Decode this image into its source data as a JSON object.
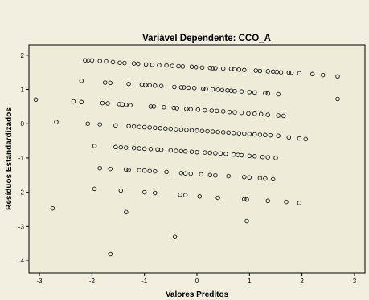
{
  "chart_data": {
    "type": "scatter",
    "title": "Variável Dependente: CCO_A",
    "xlabel": "Valores Preditos",
    "ylabel": "Resíduos Estandardizados",
    "xlim": [
      -3.2,
      3.2
    ],
    "ylim": [
      -4.35,
      2.3
    ],
    "x_ticks": [
      -3,
      -2,
      -1,
      0,
      1,
      2,
      3
    ],
    "y_ticks": [
      2,
      1,
      0,
      -1,
      -2,
      -3,
      -4
    ],
    "grid": false,
    "legend": "none",
    "background_color": "#eeecd9",
    "page_color": "#f2efe0",
    "marker": "hollow-circle",
    "series": [
      {
        "points": [
          {
            "x": -2.13,
            "y": 1.85
          },
          {
            "x": -2.07,
            "y": 1.85
          },
          {
            "x": -2.0,
            "y": 1.85
          },
          {
            "x": -1.85,
            "y": 1.83
          },
          {
            "x": -1.73,
            "y": 1.82
          },
          {
            "x": -1.6,
            "y": 1.8
          },
          {
            "x": -1.47,
            "y": 1.78
          },
          {
            "x": -1.38,
            "y": 1.77
          },
          {
            "x": -1.2,
            "y": 1.76
          },
          {
            "x": -1.12,
            "y": 1.75
          },
          {
            "x": -0.97,
            "y": 1.73
          },
          {
            "x": -0.85,
            "y": 1.72
          },
          {
            "x": -0.72,
            "y": 1.71
          },
          {
            "x": -0.58,
            "y": 1.7
          },
          {
            "x": -0.47,
            "y": 1.69
          },
          {
            "x": -0.35,
            "y": 1.68
          },
          {
            "x": -0.27,
            "y": 1.67
          },
          {
            "x": -0.1,
            "y": 1.66
          },
          {
            "x": -0.02,
            "y": 1.65
          },
          {
            "x": 0.1,
            "y": 1.64
          },
          {
            "x": 0.25,
            "y": 1.63
          },
          {
            "x": 0.3,
            "y": 1.62
          },
          {
            "x": 0.35,
            "y": 1.62
          },
          {
            "x": 0.5,
            "y": 1.61
          },
          {
            "x": 0.65,
            "y": 1.6
          },
          {
            "x": 0.72,
            "y": 1.59
          },
          {
            "x": 0.8,
            "y": 1.58
          },
          {
            "x": 0.9,
            "y": 1.57
          },
          {
            "x": 1.12,
            "y": 1.55
          },
          {
            "x": 1.2,
            "y": 1.54
          },
          {
            "x": 1.35,
            "y": 1.53
          },
          {
            "x": 1.45,
            "y": 1.52
          },
          {
            "x": 1.52,
            "y": 1.51
          },
          {
            "x": 1.6,
            "y": 1.5
          },
          {
            "x": 1.75,
            "y": 1.49
          },
          {
            "x": 1.8,
            "y": 1.49
          },
          {
            "x": 1.95,
            "y": 1.47
          },
          {
            "x": 2.2,
            "y": 1.45
          },
          {
            "x": 2.4,
            "y": 1.42
          },
          {
            "x": 2.68,
            "y": 1.38
          },
          {
            "x": -2.2,
            "y": 1.25
          },
          {
            "x": -1.75,
            "y": 1.2
          },
          {
            "x": -1.65,
            "y": 1.19
          },
          {
            "x": -1.3,
            "y": 1.16
          },
          {
            "x": -1.05,
            "y": 1.14
          },
          {
            "x": -0.98,
            "y": 1.13
          },
          {
            "x": -0.9,
            "y": 1.12
          },
          {
            "x": -0.8,
            "y": 1.11
          },
          {
            "x": -0.68,
            "y": 1.1
          },
          {
            "x": -0.43,
            "y": 1.07
          },
          {
            "x": -0.3,
            "y": 1.06
          },
          {
            "x": -0.25,
            "y": 1.06
          },
          {
            "x": -0.16,
            "y": 1.05
          },
          {
            "x": -0.05,
            "y": 1.04
          },
          {
            "x": 0.12,
            "y": 1.02
          },
          {
            "x": 0.17,
            "y": 1.01
          },
          {
            "x": 0.3,
            "y": 1.0
          },
          {
            "x": 0.4,
            "y": 0.99
          },
          {
            "x": 0.48,
            "y": 0.98
          },
          {
            "x": 0.58,
            "y": 0.97
          },
          {
            "x": 0.65,
            "y": 0.96
          },
          {
            "x": 0.72,
            "y": 0.95
          },
          {
            "x": 0.85,
            "y": 0.94
          },
          {
            "x": 1.0,
            "y": 0.92
          },
          {
            "x": 1.1,
            "y": 0.91
          },
          {
            "x": 1.3,
            "y": 0.89
          },
          {
            "x": 1.35,
            "y": 0.88
          },
          {
            "x": 1.55,
            "y": 0.86
          },
          {
            "x": -3.07,
            "y": 0.7
          },
          {
            "x": -2.35,
            "y": 0.65
          },
          {
            "x": -2.2,
            "y": 0.63
          },
          {
            "x": -1.8,
            "y": 0.6
          },
          {
            "x": -1.7,
            "y": 0.59
          },
          {
            "x": -1.48,
            "y": 0.57
          },
          {
            "x": -1.42,
            "y": 0.56
          },
          {
            "x": -1.35,
            "y": 0.55
          },
          {
            "x": -1.27,
            "y": 0.54
          },
          {
            "x": -0.88,
            "y": 0.5
          },
          {
            "x": -0.82,
            "y": 0.5
          },
          {
            "x": -0.63,
            "y": 0.48
          },
          {
            "x": -0.44,
            "y": 0.46
          },
          {
            "x": -0.38,
            "y": 0.45
          },
          {
            "x": -0.2,
            "y": 0.43
          },
          {
            "x": -0.12,
            "y": 0.42
          },
          {
            "x": 0.02,
            "y": 0.41
          },
          {
            "x": 0.15,
            "y": 0.39
          },
          {
            "x": 0.28,
            "y": 0.38
          },
          {
            "x": 0.38,
            "y": 0.37
          },
          {
            "x": 0.5,
            "y": 0.36
          },
          {
            "x": 0.62,
            "y": 0.34
          },
          {
            "x": 0.72,
            "y": 0.33
          },
          {
            "x": 0.85,
            "y": 0.32
          },
          {
            "x": 0.98,
            "y": 0.3
          },
          {
            "x": 1.1,
            "y": 0.29
          },
          {
            "x": 1.22,
            "y": 0.28
          },
          {
            "x": 1.35,
            "y": 0.26
          },
          {
            "x": 1.55,
            "y": 0.24
          },
          {
            "x": 1.65,
            "y": 0.23
          },
          {
            "x": 2.68,
            "y": 0.72
          },
          {
            "x": -2.68,
            "y": 0.05
          },
          {
            "x": -2.08,
            "y": 0.0
          },
          {
            "x": -1.85,
            "y": -0.02
          },
          {
            "x": -1.55,
            "y": -0.05
          },
          {
            "x": -1.3,
            "y": -0.07
          },
          {
            "x": -1.2,
            "y": -0.08
          },
          {
            "x": -1.1,
            "y": -0.09
          },
          {
            "x": -1.0,
            "y": -0.1
          },
          {
            "x": -0.9,
            "y": -0.11
          },
          {
            "x": -0.8,
            "y": -0.12
          },
          {
            "x": -0.7,
            "y": -0.13
          },
          {
            "x": -0.6,
            "y": -0.14
          },
          {
            "x": -0.5,
            "y": -0.15
          },
          {
            "x": -0.4,
            "y": -0.16
          },
          {
            "x": -0.3,
            "y": -0.17
          },
          {
            "x": -0.2,
            "y": -0.18
          },
          {
            "x": -0.1,
            "y": -0.19
          },
          {
            "x": 0.0,
            "y": -0.2
          },
          {
            "x": 0.1,
            "y": -0.21
          },
          {
            "x": 0.2,
            "y": -0.22
          },
          {
            "x": 0.3,
            "y": -0.23
          },
          {
            "x": 0.4,
            "y": -0.24
          },
          {
            "x": 0.5,
            "y": -0.25
          },
          {
            "x": 0.6,
            "y": -0.26
          },
          {
            "x": 0.7,
            "y": -0.27
          },
          {
            "x": 0.8,
            "y": -0.28
          },
          {
            "x": 0.9,
            "y": -0.29
          },
          {
            "x": 1.0,
            "y": -0.3
          },
          {
            "x": 1.1,
            "y": -0.31
          },
          {
            "x": 1.2,
            "y": -0.32
          },
          {
            "x": 1.3,
            "y": -0.33
          },
          {
            "x": 1.4,
            "y": -0.34
          },
          {
            "x": 1.55,
            "y": -0.35
          },
          {
            "x": 1.75,
            "y": -0.4
          },
          {
            "x": 1.95,
            "y": -0.43
          },
          {
            "x": 2.07,
            "y": -0.45
          },
          {
            "x": -1.95,
            "y": -0.65
          },
          {
            "x": -1.55,
            "y": -0.68
          },
          {
            "x": -1.45,
            "y": -0.69
          },
          {
            "x": -1.35,
            "y": -0.7
          },
          {
            "x": -1.2,
            "y": -0.71
          },
          {
            "x": -1.1,
            "y": -0.72
          },
          {
            "x": -1.0,
            "y": -0.73
          },
          {
            "x": -0.88,
            "y": -0.74
          },
          {
            "x": -0.75,
            "y": -0.75
          },
          {
            "x": -0.68,
            "y": -0.76
          },
          {
            "x": -0.5,
            "y": -0.78
          },
          {
            "x": -0.4,
            "y": -0.79
          },
          {
            "x": -0.3,
            "y": -0.8
          },
          {
            "x": -0.22,
            "y": -0.81
          },
          {
            "x": -0.1,
            "y": -0.82
          },
          {
            "x": 0.0,
            "y": -0.83
          },
          {
            "x": 0.15,
            "y": -0.84
          },
          {
            "x": 0.25,
            "y": -0.85
          },
          {
            "x": 0.35,
            "y": -0.86
          },
          {
            "x": 0.45,
            "y": -0.87
          },
          {
            "x": 0.55,
            "y": -0.88
          },
          {
            "x": 0.7,
            "y": -0.9
          },
          {
            "x": 0.78,
            "y": -0.91
          },
          {
            "x": 0.85,
            "y": -0.92
          },
          {
            "x": 1.0,
            "y": -0.94
          },
          {
            "x": 1.1,
            "y": -0.95
          },
          {
            "x": 1.25,
            "y": -0.97
          },
          {
            "x": 1.35,
            "y": -0.98
          },
          {
            "x": 1.5,
            "y": -1.0
          },
          {
            "x": -1.85,
            "y": -1.3
          },
          {
            "x": -1.65,
            "y": -1.32
          },
          {
            "x": -1.35,
            "y": -1.34
          },
          {
            "x": -1.3,
            "y": -1.35
          },
          {
            "x": -1.1,
            "y": -1.36
          },
          {
            "x": -1.0,
            "y": -1.37
          },
          {
            "x": -0.9,
            "y": -1.38
          },
          {
            "x": -0.8,
            "y": -1.39
          },
          {
            "x": -0.58,
            "y": -1.41
          },
          {
            "x": -0.3,
            "y": -1.44
          },
          {
            "x": -0.22,
            "y": -1.45
          },
          {
            "x": -0.12,
            "y": -1.46
          },
          {
            "x": 0.08,
            "y": -1.48
          },
          {
            "x": 0.25,
            "y": -1.5
          },
          {
            "x": 0.35,
            "y": -1.51
          },
          {
            "x": 0.6,
            "y": -1.53
          },
          {
            "x": 0.9,
            "y": -1.56
          },
          {
            "x": 1.0,
            "y": -1.57
          },
          {
            "x": 1.2,
            "y": -1.59
          },
          {
            "x": 1.3,
            "y": -1.6
          },
          {
            "x": 1.45,
            "y": -1.62
          },
          {
            "x": -1.95,
            "y": -1.9
          },
          {
            "x": -1.45,
            "y": -1.95
          },
          {
            "x": -1.0,
            "y": -2.0
          },
          {
            "x": -0.8,
            "y": -2.02
          },
          {
            "x": -0.32,
            "y": -2.07
          },
          {
            "x": -0.22,
            "y": -2.08
          },
          {
            "x": 0.05,
            "y": -2.12
          },
          {
            "x": 0.4,
            "y": -2.16
          },
          {
            "x": 0.9,
            "y": -2.2
          },
          {
            "x": 0.95,
            "y": -2.21
          },
          {
            "x": 1.35,
            "y": -2.25
          },
          {
            "x": 1.7,
            "y": -2.28
          },
          {
            "x": 1.95,
            "y": -2.31
          },
          {
            "x": -2.75,
            "y": -2.47
          },
          {
            "x": -1.35,
            "y": -2.58
          },
          {
            "x": 0.95,
            "y": -2.84
          },
          {
            "x": -0.42,
            "y": -3.3
          },
          {
            "x": -1.65,
            "y": -3.8
          }
        ]
      }
    ]
  }
}
